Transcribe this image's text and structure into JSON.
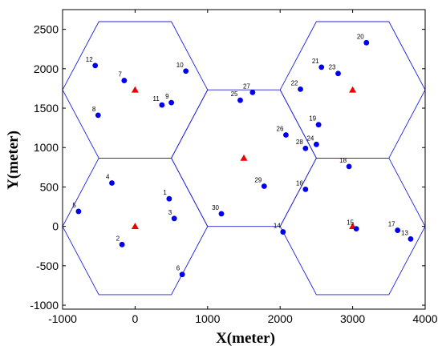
{
  "chart_data": {
    "type": "scatter",
    "xlabel": "X(meter)",
    "ylabel": "Y(meter)",
    "xlim": [
      -1000,
      4000
    ],
    "ylim": [
      -1050,
      2750
    ],
    "xticks": [
      -1000,
      0,
      1000,
      2000,
      3000,
      4000
    ],
    "yticks": [
      -1000,
      -500,
      0,
      500,
      1000,
      1500,
      2000,
      2500
    ],
    "hexagon_radius": 1000,
    "colors": {
      "hexagon": "#1e22d6",
      "user": "#0000ee",
      "base_station": "#ee0000",
      "axis": "#000000"
    },
    "base_stations": [
      {
        "x": 0,
        "y": 0
      },
      {
        "x": 0,
        "y": 1732
      },
      {
        "x": 1500,
        "y": 866
      },
      {
        "x": 3000,
        "y": 1732
      },
      {
        "x": 3000,
        "y": 0
      }
    ],
    "users": [
      {
        "label": "1",
        "x": 470,
        "y": 350
      },
      {
        "label": "2",
        "x": -180,
        "y": -230
      },
      {
        "label": "3",
        "x": 540,
        "y": 100
      },
      {
        "label": "4",
        "x": -320,
        "y": 550
      },
      {
        "label": "5",
        "x": -780,
        "y": 190
      },
      {
        "label": "6",
        "x": 650,
        "y": -610
      },
      {
        "label": "7",
        "x": -150,
        "y": 1850
      },
      {
        "label": "8",
        "x": -510,
        "y": 1410
      },
      {
        "label": "9",
        "x": 500,
        "y": 1570
      },
      {
        "label": "10",
        "x": 700,
        "y": 1970
      },
      {
        "label": "11",
        "x": 370,
        "y": 1540
      },
      {
        "label": "12",
        "x": -550,
        "y": 2040
      },
      {
        "label": "13",
        "x": 3800,
        "y": -160
      },
      {
        "label": "14",
        "x": 2040,
        "y": -70
      },
      {
        "label": "15",
        "x": 3050,
        "y": -30
      },
      {
        "label": "16",
        "x": 2350,
        "y": 470
      },
      {
        "label": "17",
        "x": 3620,
        "y": -50
      },
      {
        "label": "18",
        "x": 2950,
        "y": 760
      },
      {
        "label": "19",
        "x": 2530,
        "y": 1290
      },
      {
        "label": "20",
        "x": 3190,
        "y": 2330
      },
      {
        "label": "21",
        "x": 2570,
        "y": 2020
      },
      {
        "label": "22",
        "x": 2280,
        "y": 1740
      },
      {
        "label": "23",
        "x": 2800,
        "y": 1940
      },
      {
        "label": "24",
        "x": 2500,
        "y": 1040
      },
      {
        "label": "25",
        "x": 1450,
        "y": 1600
      },
      {
        "label": "26",
        "x": 2080,
        "y": 1160
      },
      {
        "label": "27",
        "x": 1620,
        "y": 1700
      },
      {
        "label": "28",
        "x": 2350,
        "y": 990
      },
      {
        "label": "29",
        "x": 1780,
        "y": 510
      },
      {
        "label": "30",
        "x": 1190,
        "y": 160
      }
    ]
  }
}
